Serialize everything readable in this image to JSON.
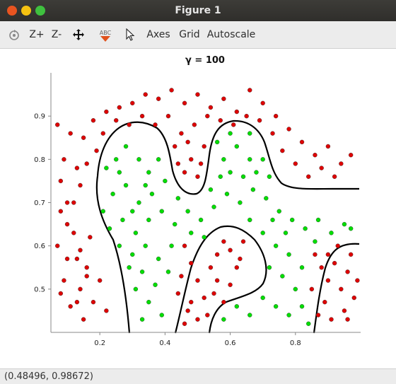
{
  "window": {
    "title": "Figure 1"
  },
  "toolbar": {
    "zoom_in": "Z+",
    "zoom_out": "Z-",
    "abc": "ABC",
    "axes": "Axes",
    "grid": "Grid",
    "autoscale": "Autoscale"
  },
  "status": {
    "coords": "(0.48496, 0.98672)"
  },
  "colors": {
    "class_a": "#dd0000",
    "class_b": "#00dd00",
    "boundary": "#000000"
  },
  "chart_data": {
    "type": "scatter",
    "title": "γ = 100",
    "xlabel": "",
    "ylabel": "",
    "xlim": [
      0.05,
      1.0
    ],
    "ylim": [
      0.4,
      1.0
    ],
    "x_ticks": [
      "0.2",
      "0.4",
      "0.6",
      "0.8"
    ],
    "y_ticks": [
      "0.5",
      "0.6",
      "0.7",
      "0.8",
      "0.9"
    ],
    "legend": "none",
    "grid": false,
    "series": [
      {
        "color": "red",
        "points": [
          [
            0.07,
            0.88
          ],
          [
            0.09,
            0.8
          ],
          [
            0.11,
            0.86
          ],
          [
            0.08,
            0.75
          ],
          [
            0.12,
            0.7
          ],
          [
            0.1,
            0.65
          ],
          [
            0.07,
            0.6
          ],
          [
            0.13,
            0.57
          ],
          [
            0.09,
            0.52
          ],
          [
            0.11,
            0.46
          ],
          [
            0.15,
            0.43
          ],
          [
            0.14,
            0.5
          ],
          [
            0.16,
            0.55
          ],
          [
            0.18,
            0.47
          ],
          [
            0.2,
            0.52
          ],
          [
            0.22,
            0.45
          ],
          [
            0.17,
            0.62
          ],
          [
            0.13,
            0.78
          ],
          [
            0.15,
            0.85
          ],
          [
            0.18,
            0.89
          ],
          [
            0.22,
            0.91
          ],
          [
            0.26,
            0.92
          ],
          [
            0.3,
            0.93
          ],
          [
            0.34,
            0.95
          ],
          [
            0.38,
            0.94
          ],
          [
            0.42,
            0.96
          ],
          [
            0.46,
            0.93
          ],
          [
            0.5,
            0.95
          ],
          [
            0.54,
            0.92
          ],
          [
            0.58,
            0.94
          ],
          [
            0.62,
            0.91
          ],
          [
            0.66,
            0.96
          ],
          [
            0.7,
            0.93
          ],
          [
            0.74,
            0.9
          ],
          [
            0.78,
            0.87
          ],
          [
            0.82,
            0.84
          ],
          [
            0.86,
            0.81
          ],
          [
            0.9,
            0.83
          ],
          [
            0.94,
            0.79
          ],
          [
            0.97,
            0.81
          ],
          [
            0.92,
            0.76
          ],
          [
            0.88,
            0.78
          ],
          [
            0.84,
            0.76
          ],
          [
            0.8,
            0.79
          ],
          [
            0.76,
            0.82
          ],
          [
            0.73,
            0.86
          ],
          [
            0.69,
            0.89
          ],
          [
            0.65,
            0.9
          ],
          [
            0.61,
            0.88
          ],
          [
            0.57,
            0.89
          ],
          [
            0.53,
            0.9
          ],
          [
            0.49,
            0.88
          ],
          [
            0.45,
            0.86
          ],
          [
            0.41,
            0.9
          ],
          [
            0.37,
            0.88
          ],
          [
            0.33,
            0.9
          ],
          [
            0.29,
            0.88
          ],
          [
            0.25,
            0.89
          ],
          [
            0.21,
            0.86
          ],
          [
            0.19,
            0.82
          ],
          [
            0.16,
            0.79
          ],
          [
            0.14,
            0.74
          ],
          [
            0.1,
            0.7
          ],
          [
            0.08,
            0.68
          ],
          [
            0.12,
            0.63
          ],
          [
            0.14,
            0.59
          ],
          [
            0.16,
            0.53
          ],
          [
            0.1,
            0.57
          ],
          [
            0.08,
            0.49
          ],
          [
            0.13,
            0.47
          ],
          [
            0.47,
            0.84
          ],
          [
            0.48,
            0.8
          ],
          [
            0.46,
            0.77
          ],
          [
            0.5,
            0.76
          ],
          [
            0.44,
            0.79
          ],
          [
            0.43,
            0.83
          ],
          [
            0.52,
            0.83
          ],
          [
            0.51,
            0.79
          ],
          [
            0.46,
            0.6
          ],
          [
            0.48,
            0.56
          ],
          [
            0.5,
            0.52
          ],
          [
            0.44,
            0.49
          ],
          [
            0.47,
            0.45
          ],
          [
            0.52,
            0.48
          ],
          [
            0.54,
            0.55
          ],
          [
            0.56,
            0.58
          ],
          [
            0.58,
            0.61
          ],
          [
            0.6,
            0.59
          ],
          [
            0.62,
            0.55
          ],
          [
            0.6,
            0.51
          ],
          [
            0.58,
            0.47
          ],
          [
            0.55,
            0.49
          ],
          [
            0.53,
            0.44
          ],
          [
            0.5,
            0.43
          ],
          [
            0.46,
            0.42
          ],
          [
            0.56,
            0.52
          ],
          [
            0.63,
            0.57
          ],
          [
            0.64,
            0.61
          ],
          [
            0.48,
            0.47
          ],
          [
            0.45,
            0.53
          ],
          [
            0.86,
            0.58
          ],
          [
            0.88,
            0.55
          ],
          [
            0.9,
            0.52
          ],
          [
            0.92,
            0.56
          ],
          [
            0.94,
            0.5
          ],
          [
            0.96,
            0.54
          ],
          [
            0.98,
            0.48
          ],
          [
            0.89,
            0.47
          ],
          [
            0.87,
            0.44
          ],
          [
            0.91,
            0.43
          ],
          [
            0.95,
            0.45
          ],
          [
            0.97,
            0.58
          ],
          [
            0.93,
            0.6
          ],
          [
            0.99,
            0.52
          ],
          [
            0.85,
            0.5
          ],
          [
            0.9,
            0.58
          ],
          [
            0.96,
            0.43
          ]
        ]
      },
      {
        "color": "green",
        "points": [
          [
            0.22,
            0.78
          ],
          [
            0.25,
            0.8
          ],
          [
            0.28,
            0.83
          ],
          [
            0.32,
            0.8
          ],
          [
            0.35,
            0.77
          ],
          [
            0.38,
            0.8
          ],
          [
            0.4,
            0.75
          ],
          [
            0.36,
            0.72
          ],
          [
            0.32,
            0.7
          ],
          [
            0.28,
            0.74
          ],
          [
            0.24,
            0.72
          ],
          [
            0.21,
            0.68
          ],
          [
            0.23,
            0.64
          ],
          [
            0.27,
            0.66
          ],
          [
            0.31,
            0.63
          ],
          [
            0.35,
            0.66
          ],
          [
            0.39,
            0.68
          ],
          [
            0.43,
            0.65
          ],
          [
            0.47,
            0.68
          ],
          [
            0.51,
            0.66
          ],
          [
            0.55,
            0.69
          ],
          [
            0.59,
            0.72
          ],
          [
            0.63,
            0.7
          ],
          [
            0.67,
            0.73
          ],
          [
            0.71,
            0.71
          ],
          [
            0.75,
            0.68
          ],
          [
            0.79,
            0.66
          ],
          [
            0.83,
            0.64
          ],
          [
            0.87,
            0.66
          ],
          [
            0.91,
            0.63
          ],
          [
            0.95,
            0.65
          ],
          [
            0.97,
            0.64
          ],
          [
            0.58,
            0.8
          ],
          [
            0.62,
            0.83
          ],
          [
            0.66,
            0.8
          ],
          [
            0.6,
            0.77
          ],
          [
            0.64,
            0.76
          ],
          [
            0.56,
            0.84
          ],
          [
            0.6,
            0.86
          ],
          [
            0.66,
            0.86
          ],
          [
            0.7,
            0.8
          ],
          [
            0.72,
            0.76
          ],
          [
            0.68,
            0.77
          ],
          [
            0.54,
            0.73
          ],
          [
            0.57,
            0.76
          ],
          [
            0.3,
            0.58
          ],
          [
            0.34,
            0.6
          ],
          [
            0.38,
            0.57
          ],
          [
            0.42,
            0.6
          ],
          [
            0.33,
            0.54
          ],
          [
            0.37,
            0.51
          ],
          [
            0.41,
            0.54
          ],
          [
            0.35,
            0.47
          ],
          [
            0.39,
            0.44
          ],
          [
            0.33,
            0.43
          ],
          [
            0.31,
            0.5
          ],
          [
            0.29,
            0.55
          ],
          [
            0.26,
            0.6
          ],
          [
            0.3,
            0.68
          ],
          [
            0.34,
            0.74
          ],
          [
            0.26,
            0.77
          ],
          [
            0.44,
            0.71
          ],
          [
            0.48,
            0.63
          ],
          [
            0.52,
            0.62
          ],
          [
            0.66,
            0.66
          ],
          [
            0.7,
            0.63
          ],
          [
            0.74,
            0.6
          ],
          [
            0.78,
            0.58
          ],
          [
            0.82,
            0.55
          ],
          [
            0.8,
            0.5
          ],
          [
            0.76,
            0.53
          ],
          [
            0.72,
            0.55
          ],
          [
            0.7,
            0.48
          ],
          [
            0.74,
            0.46
          ],
          [
            0.78,
            0.44
          ],
          [
            0.82,
            0.46
          ],
          [
            0.84,
            0.42
          ],
          [
            0.66,
            0.44
          ],
          [
            0.62,
            0.46
          ],
          [
            0.58,
            0.43
          ],
          [
            0.86,
            0.61
          ],
          [
            0.77,
            0.63
          ],
          [
            0.73,
            0.66
          ]
        ]
      }
    ]
  }
}
